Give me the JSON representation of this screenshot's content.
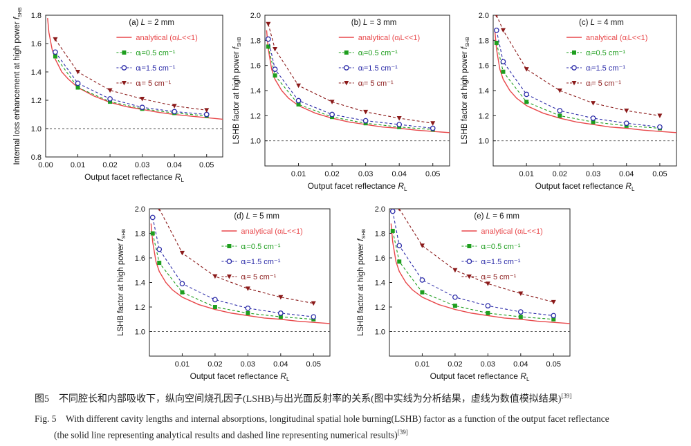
{
  "chart_data": [
    {
      "type": "line",
      "panel_label": "(a) L = 2 mm",
      "xlabel": "Output facet reflectance R_L",
      "ylabel": "Internal loss enhancement at high power f_SHB",
      "xlim": [
        0,
        0.055
      ],
      "ylim": [
        0.8,
        1.8
      ],
      "xticks": [
        "0.00",
        "0.01",
        "0.02",
        "0.03",
        "0.04",
        "0.05"
      ],
      "yticks": [
        "0.8",
        "1.0",
        "1.2",
        "1.4",
        "1.6",
        "1.8"
      ],
      "reference_line": 1.0,
      "analytical": {
        "name": "analytical (αᵢL<<1)",
        "color": "#e8474a",
        "x": [
          0.0006,
          0.001,
          0.002,
          0.003,
          0.005,
          0.007,
          0.01,
          0.015,
          0.02,
          0.025,
          0.03,
          0.035,
          0.04,
          0.045,
          0.05,
          0.055
        ],
        "y": [
          1.78,
          1.68,
          1.56,
          1.49,
          1.4,
          1.35,
          1.29,
          1.23,
          1.185,
          1.155,
          1.135,
          1.115,
          1.1,
          1.088,
          1.077,
          1.066
        ]
      },
      "series": [
        {
          "name": "αᵢ=0.5 cm⁻¹",
          "color": "#1e9e1e",
          "marker": "square",
          "x": [
            0.003,
            0.01,
            0.02,
            0.03,
            0.04,
            0.05
          ],
          "y": [
            1.51,
            1.29,
            1.19,
            1.14,
            1.11,
            1.09
          ]
        },
        {
          "name": "αᵢ=1.5 cm⁻¹",
          "color": "#2a2aa8",
          "marker": "circle",
          "x": [
            0.003,
            0.01,
            0.02,
            0.03,
            0.04,
            0.05
          ],
          "y": [
            1.54,
            1.32,
            1.21,
            1.15,
            1.12,
            1.1
          ]
        },
        {
          "name": "αᵢ= 5 cm⁻¹",
          "color": "#8b1a1a",
          "marker": "triangle",
          "x": [
            0.003,
            0.01,
            0.02,
            0.03,
            0.04,
            0.05
          ],
          "y": [
            1.63,
            1.4,
            1.27,
            1.21,
            1.16,
            1.13
          ]
        }
      ]
    },
    {
      "type": "line",
      "panel_label": "(b) L = 3 mm",
      "xlabel": "Output facet reflectance R_L",
      "ylabel": "LSHB factor at high power f_SHB",
      "xlim": [
        0,
        0.055
      ],
      "ylim": [
        0.8,
        2.0
      ],
      "xticks": [
        "0.01",
        "0.02",
        "0.03",
        "0.04",
        "0.05"
      ],
      "yticks": [
        "1.0",
        "1.2",
        "1.4",
        "1.6",
        "1.8",
        "2.0"
      ],
      "reference_line": 1.0,
      "analytical": {
        "name": "analytical (αᵢL<<1)",
        "color": "#e8474a",
        "x": [
          0.0005,
          0.001,
          0.002,
          0.003,
          0.005,
          0.007,
          0.01,
          0.015,
          0.02,
          0.025,
          0.03,
          0.035,
          0.04,
          0.045,
          0.05,
          0.055
        ],
        "y": [
          1.88,
          1.73,
          1.57,
          1.49,
          1.4,
          1.34,
          1.28,
          1.22,
          1.18,
          1.15,
          1.13,
          1.11,
          1.1,
          1.085,
          1.075,
          1.065
        ]
      },
      "series": [
        {
          "name": "αᵢ=0.5 cm⁻¹",
          "color": "#1e9e1e",
          "marker": "square",
          "x": [
            0.001,
            0.003,
            0.01,
            0.02,
            0.03,
            0.04,
            0.05
          ],
          "y": [
            1.75,
            1.52,
            1.29,
            1.19,
            1.14,
            1.11,
            1.09
          ]
        },
        {
          "name": "αᵢ=1.5 cm⁻¹",
          "color": "#2a2aa8",
          "marker": "circle",
          "x": [
            0.001,
            0.003,
            0.01,
            0.02,
            0.03,
            0.04,
            0.05
          ],
          "y": [
            1.81,
            1.57,
            1.32,
            1.21,
            1.16,
            1.13,
            1.1
          ]
        },
        {
          "name": "αᵢ= 5 cm⁻¹",
          "color": "#8b1a1a",
          "marker": "triangle",
          "x": [
            0.001,
            0.003,
            0.01,
            0.02,
            0.03,
            0.04,
            0.05
          ],
          "y": [
            1.93,
            1.73,
            1.44,
            1.31,
            1.23,
            1.18,
            1.14
          ]
        }
      ]
    },
    {
      "type": "line",
      "panel_label": "(c) L = 4 mm",
      "xlabel": "Output facet reflectance R_L",
      "ylabel": "LSHB factor at high power f_SHB",
      "xlim": [
        0,
        0.055
      ],
      "ylim": [
        0.8,
        2.0
      ],
      "xticks": [
        "0.01",
        "0.02",
        "0.03",
        "0.04",
        "0.05"
      ],
      "yticks": [
        "1.0",
        "1.2",
        "1.4",
        "1.6",
        "1.8",
        "2.0"
      ],
      "reference_line": 1.0,
      "analytical": {
        "name": "analytical (αᵢL<<1)",
        "color": "#e8474a",
        "x": [
          0.0005,
          0.001,
          0.002,
          0.003,
          0.005,
          0.007,
          0.01,
          0.015,
          0.02,
          0.025,
          0.03,
          0.035,
          0.04,
          0.045,
          0.05,
          0.055
        ],
        "y": [
          1.88,
          1.73,
          1.57,
          1.49,
          1.4,
          1.34,
          1.28,
          1.22,
          1.18,
          1.15,
          1.13,
          1.11,
          1.1,
          1.085,
          1.075,
          1.065
        ]
      },
      "series": [
        {
          "name": "αᵢ=0.5 cm⁻¹",
          "color": "#1e9e1e",
          "marker": "square",
          "x": [
            0.001,
            0.003,
            0.01,
            0.02,
            0.03,
            0.04,
            0.05
          ],
          "y": [
            1.78,
            1.55,
            1.31,
            1.2,
            1.15,
            1.12,
            1.1
          ]
        },
        {
          "name": "αᵢ=1.5 cm⁻¹",
          "color": "#2a2aa8",
          "marker": "circle",
          "x": [
            0.001,
            0.003,
            0.01,
            0.02,
            0.03,
            0.04,
            0.05
          ],
          "y": [
            1.88,
            1.63,
            1.37,
            1.24,
            1.18,
            1.14,
            1.11
          ]
        },
        {
          "name": "αᵢ= 5 cm⁻¹",
          "color": "#8b1a1a",
          "marker": "triangle",
          "x": [
            0.001,
            0.003,
            0.01,
            0.02,
            0.03,
            0.04,
            0.05
          ],
          "y": [
            2.0,
            1.88,
            1.57,
            1.4,
            1.3,
            1.24,
            1.2
          ]
        }
      ]
    },
    {
      "type": "line",
      "panel_label": "(d) L = 5 mm",
      "xlabel": "Output facet reflectance R_L",
      "ylabel": "LSHB factor at high power f_SHB",
      "xlim": [
        0,
        0.055
      ],
      "ylim": [
        0.8,
        2.0
      ],
      "xticks": [
        "0.01",
        "0.02",
        "0.03",
        "0.04",
        "0.05"
      ],
      "yticks": [
        "1.0",
        "1.2",
        "1.4",
        "1.6",
        "1.8",
        "2.0"
      ],
      "reference_line": 1.0,
      "analytical": {
        "name": "analytical (αᵢL<<1)",
        "color": "#e8474a",
        "x": [
          0.0005,
          0.001,
          0.002,
          0.003,
          0.005,
          0.007,
          0.01,
          0.015,
          0.02,
          0.025,
          0.03,
          0.035,
          0.04,
          0.045,
          0.05,
          0.055
        ],
        "y": [
          1.88,
          1.73,
          1.57,
          1.49,
          1.4,
          1.34,
          1.28,
          1.22,
          1.18,
          1.15,
          1.13,
          1.11,
          1.1,
          1.085,
          1.075,
          1.065
        ]
      },
      "series": [
        {
          "name": "αᵢ=0.5 cm⁻¹",
          "color": "#1e9e1e",
          "marker": "square",
          "x": [
            0.001,
            0.003,
            0.01,
            0.02,
            0.03,
            0.04,
            0.05
          ],
          "y": [
            1.8,
            1.56,
            1.32,
            1.2,
            1.15,
            1.12,
            1.1
          ]
        },
        {
          "name": "αᵢ=1.5 cm⁻¹",
          "color": "#2a2aa8",
          "marker": "circle",
          "x": [
            0.001,
            0.003,
            0.01,
            0.02,
            0.03,
            0.04,
            0.05
          ],
          "y": [
            1.93,
            1.67,
            1.39,
            1.26,
            1.19,
            1.15,
            1.12
          ]
        },
        {
          "name": "αᵢ= 5 cm⁻¹",
          "color": "#8b1a1a",
          "marker": "triangle",
          "x": [
            0.003,
            0.01,
            0.02,
            0.03,
            0.04,
            0.05
          ],
          "y": [
            2.0,
            1.64,
            1.45,
            1.35,
            1.28,
            1.23
          ]
        }
      ]
    },
    {
      "type": "line",
      "panel_label": "(e) L = 6 mm",
      "xlabel": "Output facet reflectance R_L",
      "ylabel": "LSHB factor at high power f_SHB",
      "xlim": [
        0,
        0.055
      ],
      "ylim": [
        0.8,
        2.0
      ],
      "xticks": [
        "0.01",
        "0.02",
        "0.03",
        "0.04",
        "0.05"
      ],
      "yticks": [
        "1.0",
        "1.2",
        "1.4",
        "1.6",
        "1.8",
        "2.0"
      ],
      "reference_line": 1.0,
      "analytical": {
        "name": "analytical (αᵢL<<1)",
        "color": "#e8474a",
        "x": [
          0.0005,
          0.001,
          0.002,
          0.003,
          0.005,
          0.007,
          0.01,
          0.015,
          0.02,
          0.025,
          0.03,
          0.035,
          0.04,
          0.045,
          0.05,
          0.055
        ],
        "y": [
          1.88,
          1.73,
          1.57,
          1.49,
          1.4,
          1.34,
          1.28,
          1.22,
          1.18,
          1.15,
          1.13,
          1.11,
          1.1,
          1.085,
          1.075,
          1.065
        ]
      },
      "series": [
        {
          "name": "αᵢ=0.5 cm⁻¹",
          "color": "#1e9e1e",
          "marker": "square",
          "x": [
            0.001,
            0.003,
            0.01,
            0.02,
            0.03,
            0.04,
            0.05
          ],
          "y": [
            1.82,
            1.57,
            1.32,
            1.21,
            1.15,
            1.12,
            1.1
          ]
        },
        {
          "name": "αᵢ=1.5 cm⁻¹",
          "color": "#2a2aa8",
          "marker": "circle",
          "x": [
            0.001,
            0.003,
            0.01,
            0.02,
            0.03,
            0.04,
            0.05
          ],
          "y": [
            1.98,
            1.7,
            1.42,
            1.28,
            1.21,
            1.16,
            1.13
          ]
        },
        {
          "name": "αᵢ= 5 cm⁻¹",
          "color": "#8b1a1a",
          "marker": "triangle",
          "x": [
            0.003,
            0.01,
            0.02,
            0.03,
            0.04,
            0.05
          ],
          "y": [
            2.0,
            1.7,
            1.5,
            1.39,
            1.31,
            1.24
          ]
        }
      ]
    }
  ],
  "caption": {
    "cn": "图5　不同腔长和内部吸收下，纵向空间烧孔因子(LSHB)与出光面反射率的关系(图中实线为分析结果，虚线为数值模拟结果)",
    "en_line1": "Fig. 5　With different cavity lengths and internal absorptions, longitudinal spatial hole burning(LSHB) factor as a function of the output facet reflectance",
    "en_line2": "(the solid line representing analytical results and dashed line representing numerical results)",
    "ref": "[39]"
  }
}
